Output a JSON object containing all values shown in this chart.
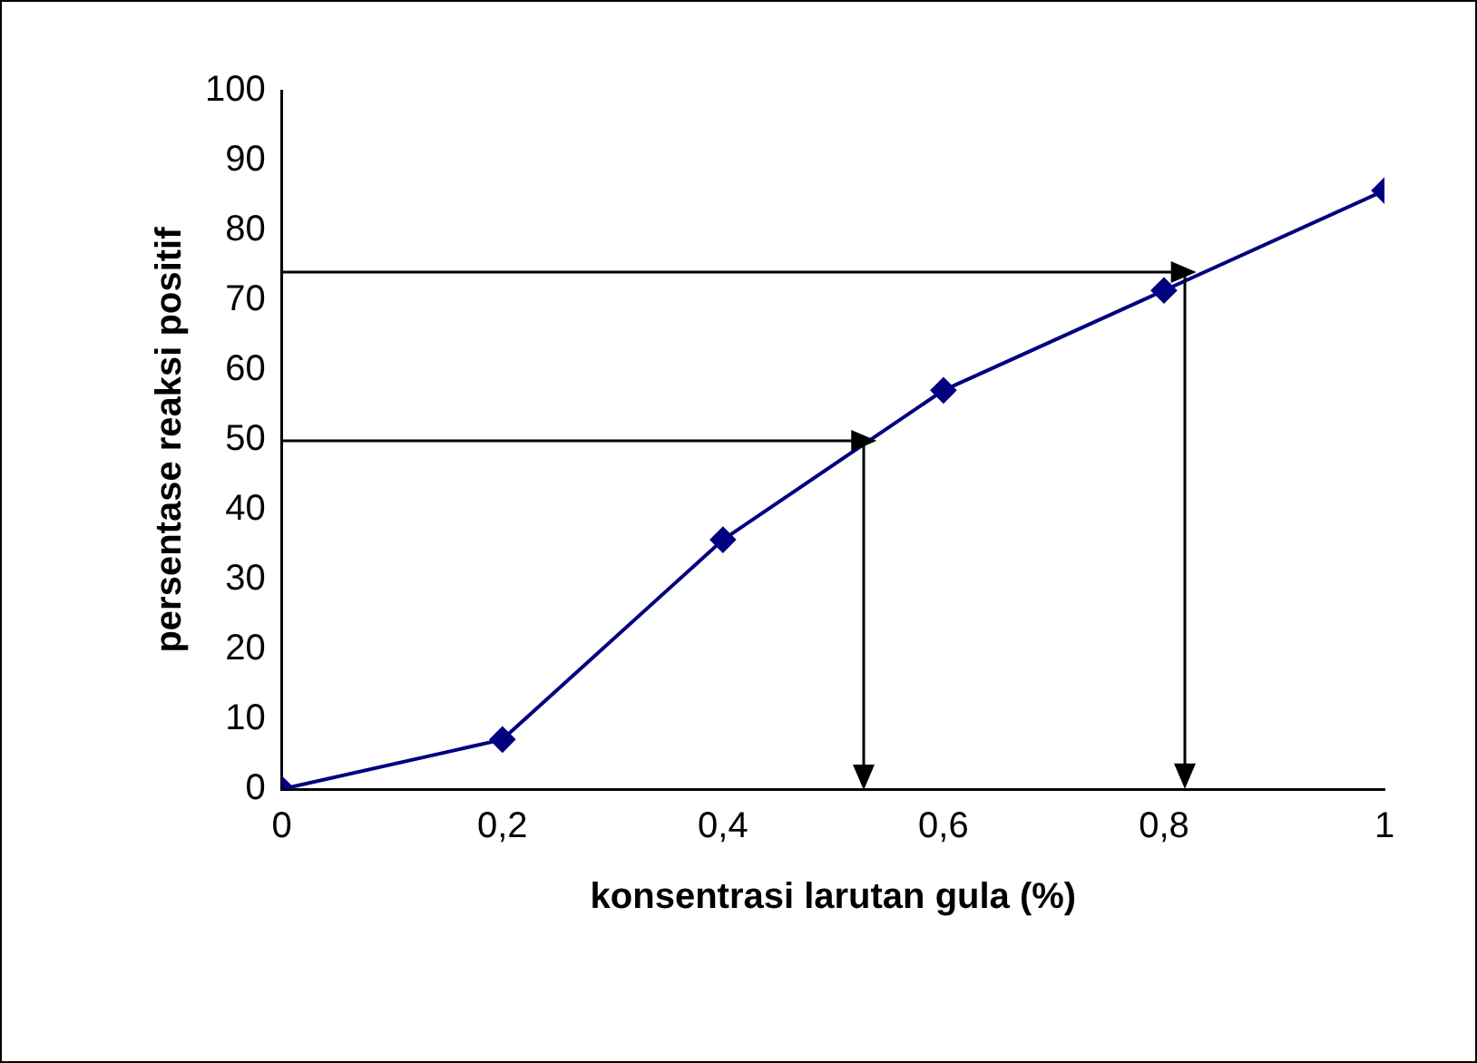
{
  "chart_data": {
    "type": "line",
    "xlabel": "konsentrasi larutan gula (%)",
    "ylabel": "persentase reaksi positif",
    "x": [
      0,
      0.2,
      0.4,
      0.6,
      0.8,
      1
    ],
    "series": [
      {
        "color": "#000080",
        "values": [
          0,
          7.1,
          35.7,
          57.1,
          71.4,
          85.7
        ]
      }
    ],
    "xlim": [
      0,
      1
    ],
    "xticks": [
      {
        "value": 0,
        "label": "0"
      },
      {
        "value": 0.2,
        "label": "0,2"
      },
      {
        "value": 0.4,
        "label": "0,4"
      },
      {
        "value": 0.6,
        "label": "0,6"
      },
      {
        "value": 0.8,
        "label": "0,8"
      },
      {
        "value": 1,
        "label": "1"
      }
    ],
    "ylim": [
      0,
      100
    ],
    "yticks": [
      0,
      10,
      20,
      30,
      40,
      50,
      60,
      70,
      80,
      90,
      100
    ],
    "grid": false,
    "legend": false,
    "marker": "diamond",
    "line_style": "solid"
  }
}
